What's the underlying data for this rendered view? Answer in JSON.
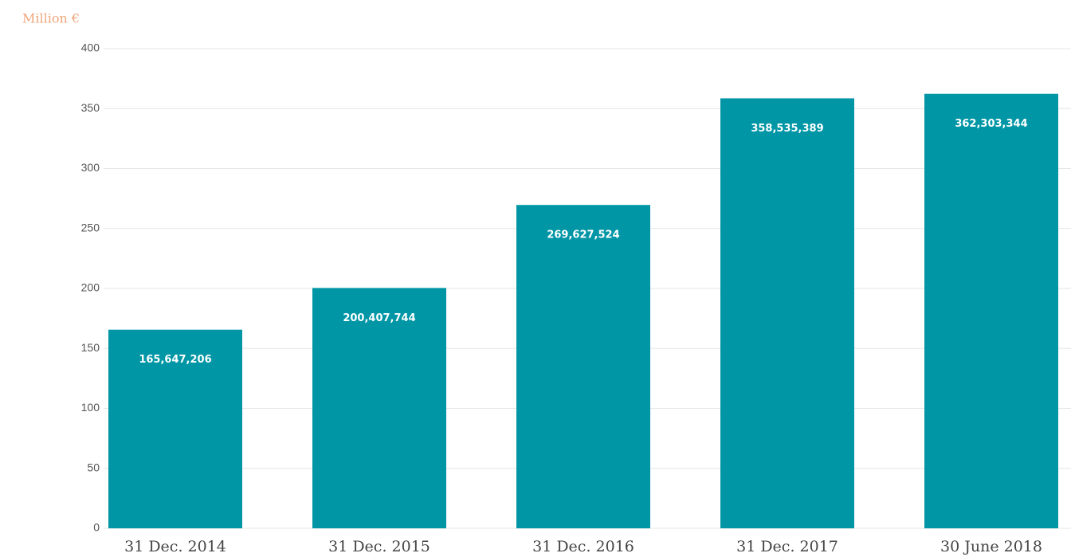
{
  "chart_data": {
    "type": "bar",
    "title": "Million €",
    "categories": [
      "31 Dec. 2014",
      "31 Dec. 2015",
      "31 Dec. 2016",
      "31 Dec. 2017",
      "30 June 2018"
    ],
    "values": [
      165.647206,
      200.407744,
      269.627524,
      358.535389,
      362.303344
    ],
    "value_labels": [
      "165,647,206",
      "200,407,744",
      "269,627,524",
      "358,535,389",
      "362,303,344"
    ],
    "color": "#0096a6",
    "ylim": [
      0,
      400
    ],
    "yticks": [
      0,
      50,
      100,
      150,
      200,
      250,
      300,
      350,
      400
    ],
    "grid": true
  }
}
